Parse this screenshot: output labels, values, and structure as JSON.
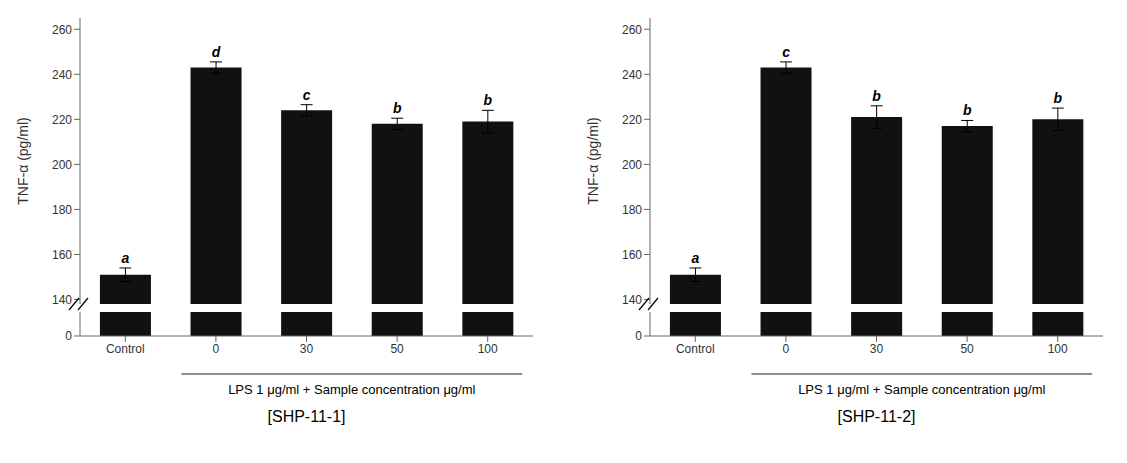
{
  "chart_data": [
    {
      "type": "bar",
      "title": "[SHP-11-1]",
      "xlabel": "LPS 1 μg/ml + Sample concentration μg/ml",
      "ylabel": "TNF-α (pg/ml)",
      "categories": [
        "Control",
        "0",
        "30",
        "50",
        "100"
      ],
      "values": [
        151,
        243,
        224,
        218,
        219
      ],
      "errors": [
        3,
        2.5,
        2.5,
        2.5,
        5
      ],
      "annotations": [
        "a",
        "d",
        "c",
        "b",
        "b"
      ],
      "color": "#111111",
      "ylim": [
        138,
        265
      ],
      "yticks": [
        140,
        160,
        180,
        200,
        220,
        240,
        260
      ],
      "lower_ylim": [
        0,
        10
      ],
      "lower_yticks": [
        0
      ]
    },
    {
      "type": "bar",
      "title": "[SHP-11-2]",
      "xlabel": "LPS 1 μg/ml + Sample concentration μg/ml",
      "ylabel": "TNF-α (pg/ml)",
      "categories": [
        "Control",
        "0",
        "30",
        "50",
        "100"
      ],
      "values": [
        151,
        243,
        221,
        217,
        220
      ],
      "errors": [
        3,
        2.5,
        5,
        2.5,
        5
      ],
      "annotations": [
        "a",
        "c",
        "b",
        "b",
        "b"
      ],
      "color": "#111111",
      "ylim": [
        138,
        265
      ],
      "yticks": [
        140,
        160,
        180,
        200,
        220,
        240,
        260
      ],
      "lower_ylim": [
        0,
        10
      ],
      "lower_yticks": [
        0
      ]
    }
  ]
}
